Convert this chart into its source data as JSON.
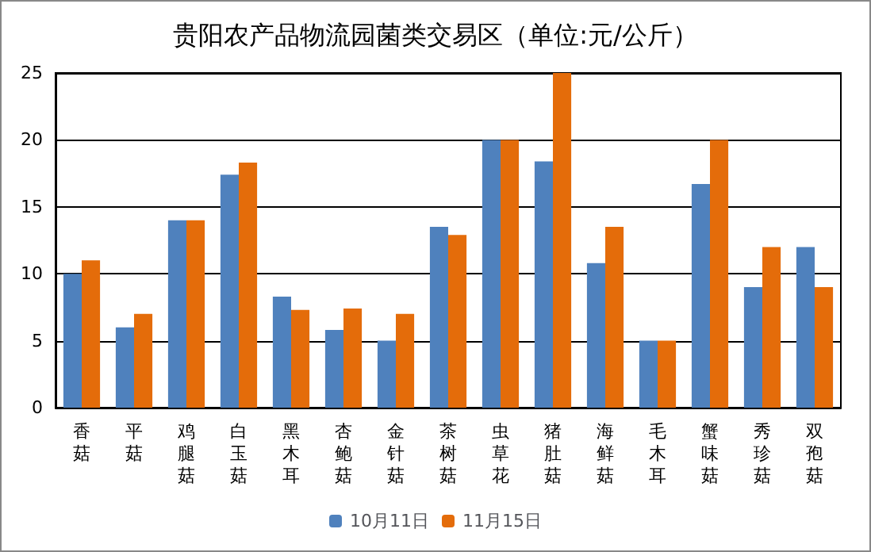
{
  "chart_data": {
    "type": "bar",
    "title": "贵阳农产品物流园菌类交易区（单位:元/公斤）",
    "categories": [
      "香菇",
      "平菇",
      "鸡腿菇",
      "白玉菇",
      "黑木耳",
      "杏鲍菇",
      "金针菇",
      "茶树菇",
      "虫草花",
      "猪肚菇",
      "海鲜菇",
      "毛木耳",
      "蟹味菇",
      "秀珍菇",
      "双孢菇"
    ],
    "series": [
      {
        "name": "10月11日",
        "color": "#4f81bd",
        "values": [
          10,
          6,
          14,
          17.4,
          8.3,
          5.8,
          5,
          13.5,
          20,
          18.4,
          10.8,
          5,
          16.7,
          9,
          12
        ]
      },
      {
        "name": "11月15日",
        "color": "#e46c0a",
        "values": [
          11,
          7,
          14,
          18.3,
          7.3,
          7.4,
          7,
          12.9,
          20,
          25,
          13.5,
          5,
          20,
          12,
          9
        ]
      }
    ],
    "ylim": [
      0,
      25
    ],
    "yticks": [
      0,
      5,
      10,
      15,
      20,
      25
    ],
    "grid": "y",
    "legend": "bottom"
  }
}
